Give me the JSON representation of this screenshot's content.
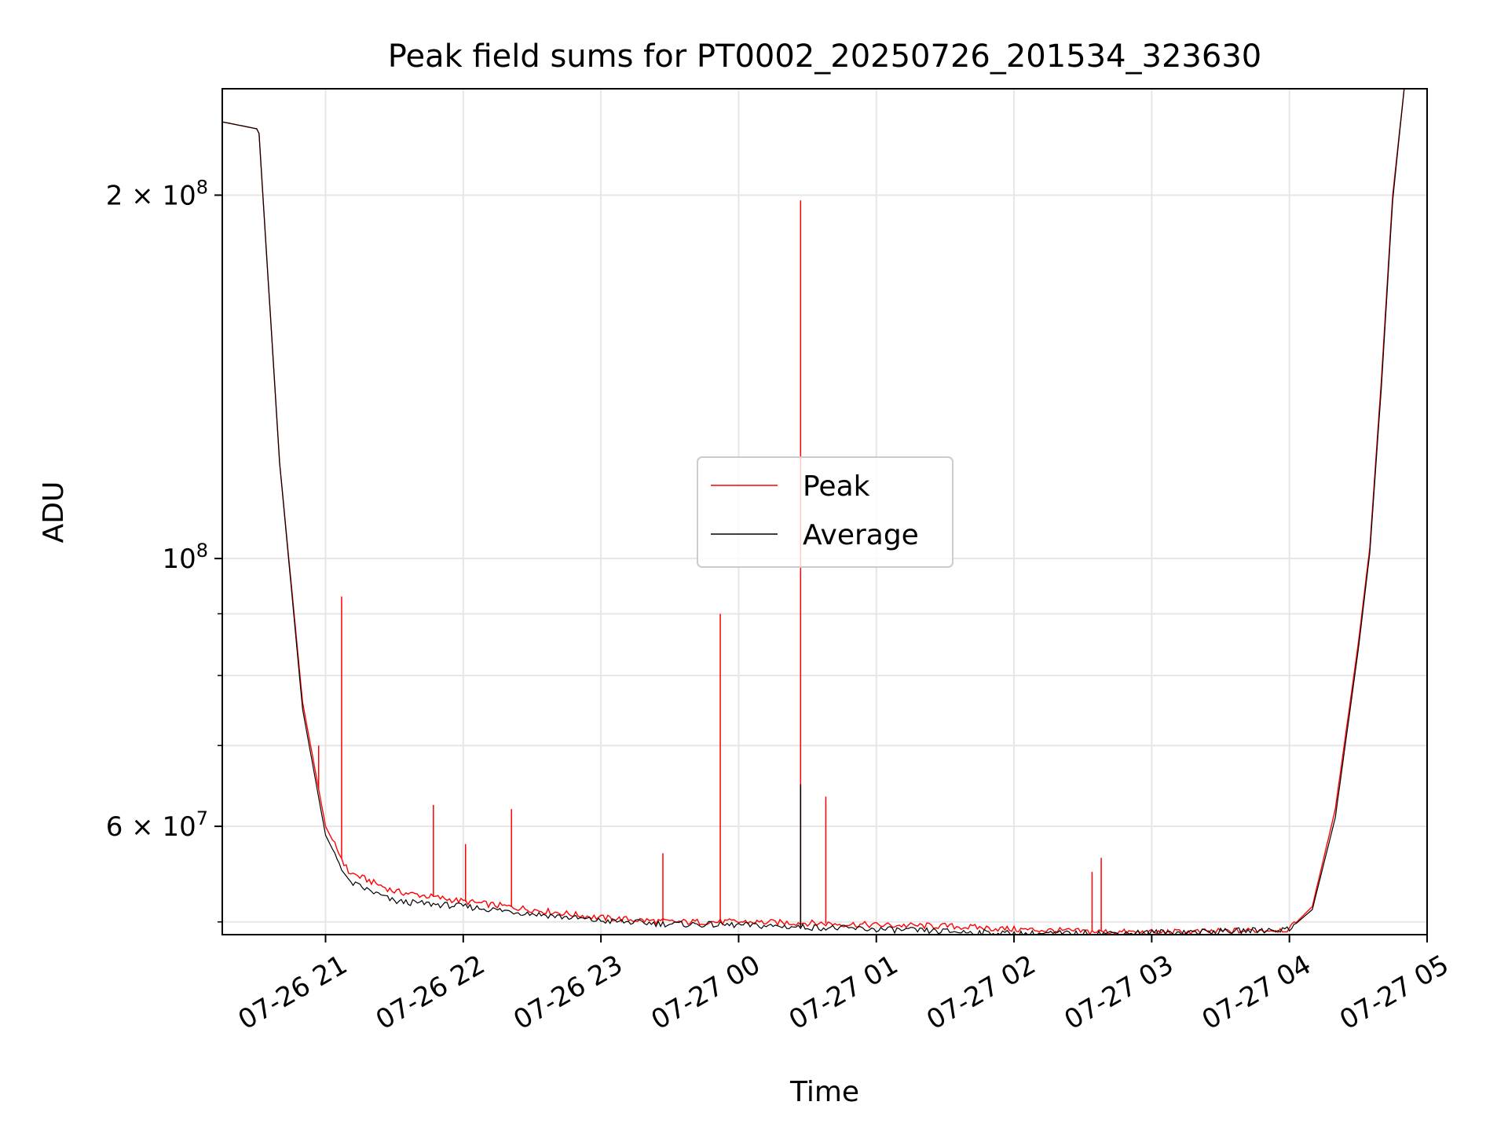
{
  "chart_data": {
    "type": "line",
    "title": "Peak field sums for PT0002_20250726_201534_323630",
    "xlabel": "Time",
    "ylabel": "ADU",
    "yscale": "log",
    "grid": true,
    "legend_placement": "center",
    "x_ticks": [
      "07-26 21",
      "07-26 22",
      "07-26 23",
      "07-27 00",
      "07-27 01",
      "07-27 02",
      "07-27 03",
      "07-27 04",
      "07-27 05"
    ],
    "x_tick_hours": [
      21,
      22,
      23,
      24,
      25,
      26,
      27,
      28,
      29
    ],
    "xlim": [
      "07-26 20:15",
      "07-27 05:00"
    ],
    "ylim": [
      48800000,
      245000000
    ],
    "y_major_ticks": [
      {
        "value": 60000000,
        "label_base": "6 × 10",
        "label_exp": "7"
      },
      {
        "value": 100000000,
        "label_base": "10",
        "label_exp": "8"
      },
      {
        "value": 200000000,
        "label_base": "2 × 10",
        "label_exp": "8"
      }
    ],
    "y_minor_ticks": [
      50000000,
      70000000,
      80000000,
      90000000
    ],
    "series": [
      {
        "name": "Peak",
        "color": "#ff0000",
        "x": [
          "07-26 20:15",
          "07-26 20:30",
          "07-26 20:31",
          "07-26 20:40",
          "07-26 20:50",
          "07-26 21:00",
          "07-26 21:10",
          "07-26 21:30",
          "07-26 22:00",
          "07-26 22:30",
          "07-26 23:00",
          "07-26 23:30",
          "07-27 00:00",
          "07-27 00:30",
          "07-27 01:00",
          "07-27 01:30",
          "07-27 02:00",
          "07-27 02:30",
          "07-27 03:00",
          "07-27 03:30",
          "07-27 04:00",
          "07-27 04:10",
          "07-27 04:20",
          "07-27 04:30",
          "07-27 04:35",
          "07-27 04:40",
          "07-27 04:45",
          "07-27 04:50"
        ],
        "values": [
          230000000,
          227000000,
          225000000,
          120000000,
          76000000,
          60000000,
          55000000,
          53000000,
          52000000,
          51200000,
          50400000,
          50000000,
          50000000,
          49900000,
          49700000,
          49600000,
          49300000,
          49100000,
          49000000,
          49100000,
          49300000,
          51500000,
          62000000,
          85000000,
          102000000,
          140000000,
          200000000,
          245000000
        ]
      },
      {
        "name": "Average",
        "color": "#000000",
        "x": [
          "07-26 20:15",
          "07-26 20:30",
          "07-26 20:31",
          "07-26 20:40",
          "07-26 20:50",
          "07-26 21:00",
          "07-26 21:10",
          "07-26 21:30",
          "07-26 22:00",
          "07-26 22:30",
          "07-26 23:00",
          "07-26 23:30",
          "07-27 00:00",
          "07-27 00:30",
          "07-27 01:00",
          "07-27 01:30",
          "07-27 02:00",
          "07-27 02:30",
          "07-27 03:00",
          "07-27 03:30",
          "07-27 04:00",
          "07-27 04:10",
          "07-27 04:20",
          "07-27 04:30",
          "07-27 04:35",
          "07-27 04:40",
          "07-27 04:45",
          "07-27 04:50"
        ],
        "values": [
          230000000,
          227000000,
          225000000,
          120000000,
          75000000,
          59000000,
          54000000,
          52000000,
          51500000,
          50800000,
          50100000,
          49800000,
          49700000,
          49500000,
          49300000,
          49100000,
          48900000,
          48900000,
          49000000,
          49100000,
          49300000,
          51200000,
          61000000,
          84000000,
          101000000,
          138000000,
          198000000,
          245000000
        ]
      }
    ],
    "peak_spikes": [
      {
        "x": "07-26 20:57",
        "value": 70000000
      },
      {
        "x": "07-26 21:07",
        "value": 93000000
      },
      {
        "x": "07-26 21:47",
        "value": 62500000
      },
      {
        "x": "07-26 22:01",
        "value": 58000000
      },
      {
        "x": "07-26 22:21",
        "value": 62000000
      },
      {
        "x": "07-26 23:27",
        "value": 57000000
      },
      {
        "x": "07-26 23:52",
        "value": 90000000
      },
      {
        "x": "07-27 00:27",
        "value": 198000000
      },
      {
        "x": "07-27 00:38",
        "value": 63500000
      },
      {
        "x": "07-27 02:34",
        "value": 55000000
      },
      {
        "x": "07-27 02:38",
        "value": 56500000
      }
    ],
    "average_spikes": [
      {
        "x": "07-27 00:27",
        "value": 65000000
      }
    ],
    "legend": {
      "entries": [
        "Peak",
        "Average"
      ]
    }
  }
}
